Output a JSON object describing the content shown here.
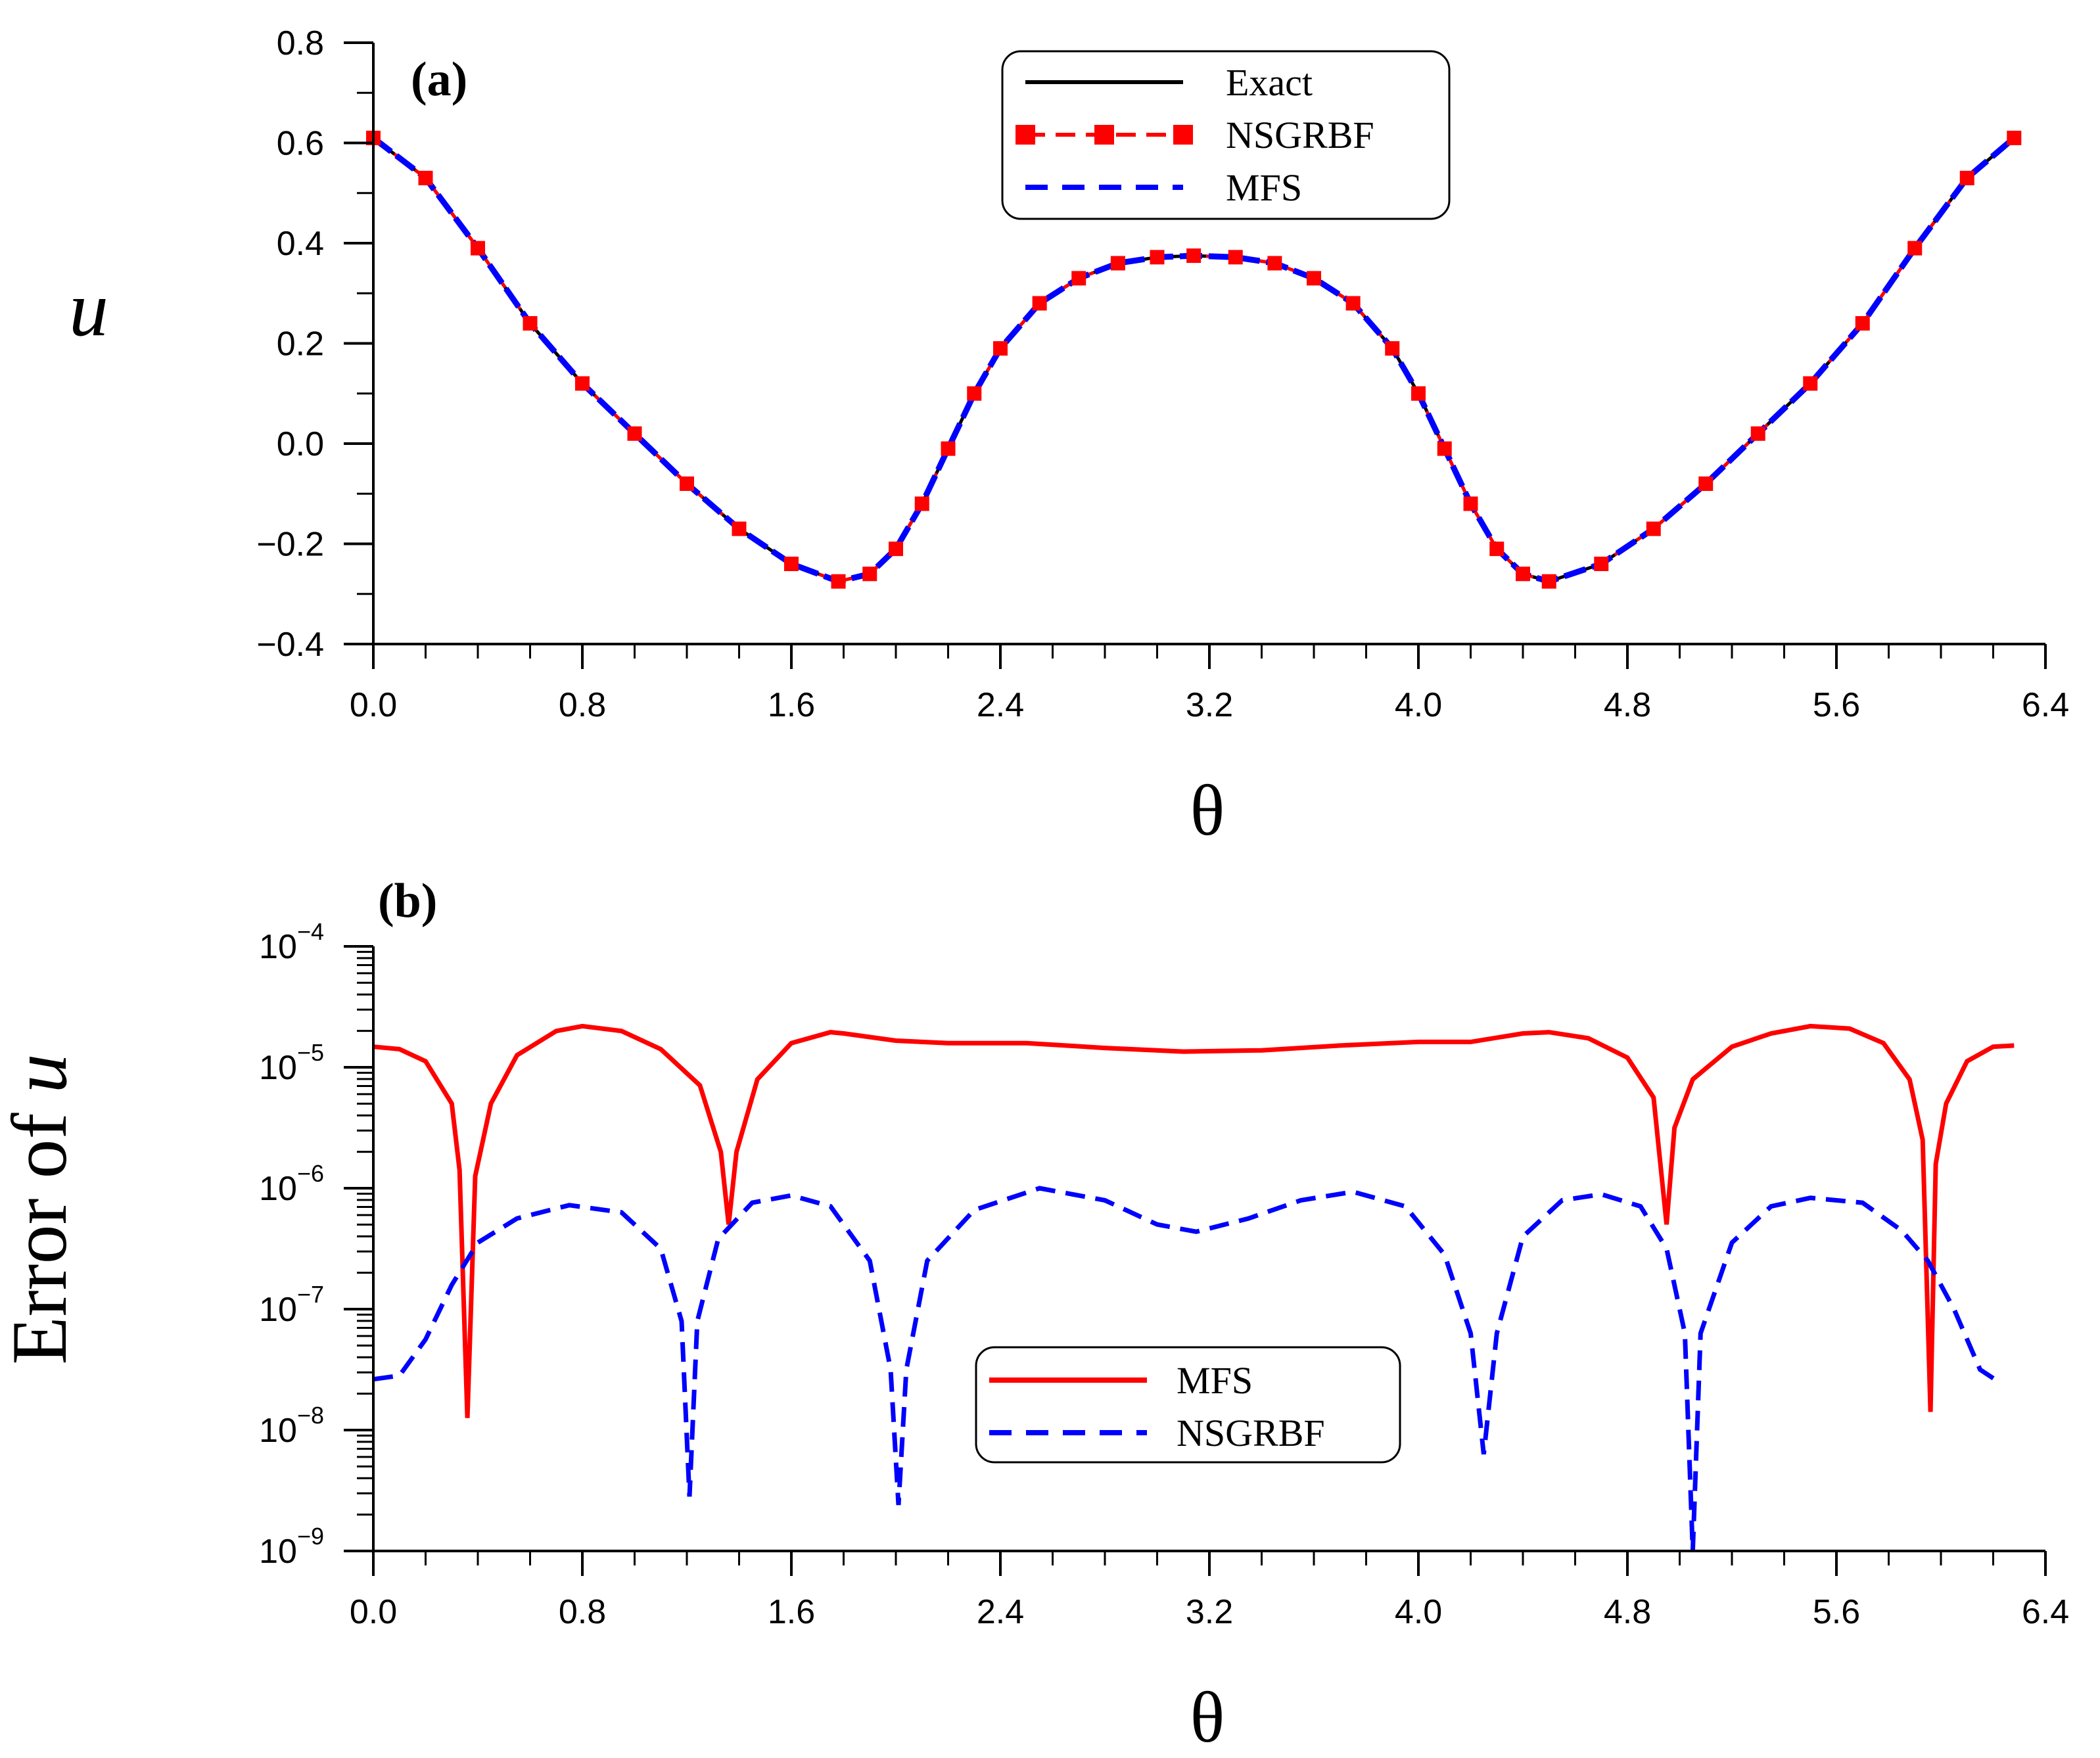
{
  "chart_data": [
    {
      "type": "line",
      "panel": "(a)",
      "xlabel": "θ",
      "ylabel": "u",
      "xlim": [
        0.0,
        6.4
      ],
      "ylim": [
        -0.4,
        0.8
      ],
      "x_ticks": [
        "0.0",
        "0.8",
        "1.6",
        "2.4",
        "3.2",
        "4.0",
        "4.8",
        "5.6",
        "6.4"
      ],
      "y_ticks": [
        "−0.4",
        "−0.2",
        "0.0",
        "0.2",
        "0.4",
        "0.6",
        "0.8"
      ],
      "legend_position": "top-center",
      "x": [
        0.0,
        0.2,
        0.4,
        0.6,
        0.8,
        1.0,
        1.2,
        1.4,
        1.6,
        1.78,
        1.9,
        2.0,
        2.1,
        2.2,
        2.3,
        2.4,
        2.55,
        2.7,
        2.85,
        3.0,
        3.14,
        3.3,
        3.45,
        3.6,
        3.75,
        3.9,
        4.0,
        4.1,
        4.2,
        4.3,
        4.4,
        4.5,
        4.7,
        4.9,
        5.1,
        5.3,
        5.5,
        5.7,
        5.9,
        6.1,
        6.28
      ],
      "series": [
        {
          "name": "Exact",
          "style": "solid",
          "color": "#000000",
          "values": [
            0.61,
            0.53,
            0.39,
            0.24,
            0.12,
            0.02,
            -0.08,
            -0.17,
            -0.24,
            -0.275,
            -0.26,
            -0.21,
            -0.12,
            -0.01,
            0.1,
            0.19,
            0.28,
            0.33,
            0.36,
            0.372,
            0.375,
            0.372,
            0.36,
            0.33,
            0.28,
            0.19,
            0.1,
            -0.01,
            -0.12,
            -0.21,
            -0.26,
            -0.275,
            -0.24,
            -0.17,
            -0.08,
            0.02,
            0.12,
            0.24,
            0.39,
            0.53,
            0.61
          ]
        },
        {
          "name": "NSGRBF",
          "style": "dashed-square-markers",
          "color": "#ff0000",
          "values": [
            0.61,
            0.53,
            0.39,
            0.24,
            0.12,
            0.02,
            -0.08,
            -0.17,
            -0.24,
            -0.275,
            -0.26,
            -0.21,
            -0.12,
            -0.01,
            0.1,
            0.19,
            0.28,
            0.33,
            0.36,
            0.372,
            0.375,
            0.372,
            0.36,
            0.33,
            0.28,
            0.19,
            0.1,
            -0.01,
            -0.12,
            -0.21,
            -0.26,
            -0.275,
            -0.24,
            -0.17,
            -0.08,
            0.02,
            0.12,
            0.24,
            0.39,
            0.53,
            0.61
          ]
        },
        {
          "name": "MFS",
          "style": "dashed",
          "color": "#0000ff",
          "values": [
            0.61,
            0.53,
            0.39,
            0.24,
            0.12,
            0.02,
            -0.08,
            -0.17,
            -0.24,
            -0.275,
            -0.26,
            -0.21,
            -0.12,
            -0.01,
            0.1,
            0.19,
            0.28,
            0.33,
            0.36,
            0.372,
            0.375,
            0.372,
            0.36,
            0.33,
            0.28,
            0.19,
            0.1,
            -0.01,
            -0.12,
            -0.21,
            -0.26,
            -0.275,
            -0.24,
            -0.17,
            -0.08,
            0.02,
            0.12,
            0.24,
            0.39,
            0.53,
            0.61
          ]
        }
      ]
    },
    {
      "type": "line",
      "panel": "(b)",
      "xlabel": "θ",
      "ylabel": "Error of u",
      "xlim": [
        0.0,
        6.4
      ],
      "ylim_log10": [
        -9,
        -4
      ],
      "yscale": "log",
      "x_ticks": [
        "0.0",
        "0.8",
        "1.6",
        "2.4",
        "3.2",
        "4.0",
        "4.8",
        "5.6",
        "6.4"
      ],
      "y_ticks": [
        {
          "base": "10",
          "exp": "−4"
        },
        {
          "base": "10",
          "exp": "−5"
        },
        {
          "base": "10",
          "exp": "−6"
        },
        {
          "base": "10",
          "exp": "−7"
        },
        {
          "base": "10",
          "exp": "−8"
        },
        {
          "base": "10",
          "exp": "−9"
        }
      ],
      "legend_position": "bottom-center",
      "series": [
        {
          "name": "MFS",
          "style": "solid",
          "color": "#ff0000",
          "x": [
            0.0,
            0.1,
            0.2,
            0.3,
            0.33,
            0.36,
            0.39,
            0.45,
            0.55,
            0.7,
            0.8,
            0.95,
            1.1,
            1.25,
            1.33,
            1.36,
            1.39,
            1.47,
            1.6,
            1.75,
            1.8,
            2.0,
            2.2,
            2.5,
            2.8,
            3.1,
            3.4,
            3.7,
            4.0,
            4.2,
            4.4,
            4.5,
            4.65,
            4.8,
            4.9,
            4.95,
            4.98,
            5.05,
            5.2,
            5.35,
            5.5,
            5.65,
            5.78,
            5.88,
            5.93,
            5.96,
            5.98,
            6.02,
            6.1,
            6.2,
            6.28
          ],
          "log10": [
            -4.83,
            -4.85,
            -4.95,
            -5.3,
            -5.85,
            -7.9,
            -5.9,
            -5.3,
            -4.9,
            -4.7,
            -4.66,
            -4.7,
            -4.85,
            -5.15,
            -5.7,
            -6.3,
            -5.7,
            -5.1,
            -4.8,
            -4.71,
            -4.72,
            -4.78,
            -4.8,
            -4.8,
            -4.84,
            -4.87,
            -4.86,
            -4.82,
            -4.79,
            -4.79,
            -4.72,
            -4.71,
            -4.76,
            -4.92,
            -5.25,
            -6.3,
            -5.5,
            -5.1,
            -4.83,
            -4.72,
            -4.66,
            -4.68,
            -4.8,
            -5.1,
            -5.6,
            -7.85,
            -5.8,
            -5.3,
            -4.95,
            -4.83,
            -4.82
          ]
        },
        {
          "name": "NSGRBF",
          "style": "dashed",
          "color": "#0000ff",
          "x": [
            0.0,
            0.1,
            0.2,
            0.3,
            0.4,
            0.55,
            0.75,
            0.95,
            1.1,
            1.18,
            1.21,
            1.24,
            1.32,
            1.45,
            1.6,
            1.75,
            1.9,
            1.98,
            2.01,
            2.04,
            2.12,
            2.3,
            2.55,
            2.8,
            3.0,
            3.15,
            3.35,
            3.55,
            3.75,
            3.95,
            4.1,
            4.2,
            4.25,
            4.3,
            4.4,
            4.55,
            4.7,
            4.85,
            4.95,
            5.02,
            5.05,
            5.08,
            5.2,
            5.35,
            5.5,
            5.7,
            5.85,
            5.95,
            6.05,
            6.15,
            6.22
          ],
          "log10": [
            -7.58,
            -7.55,
            -7.25,
            -6.8,
            -6.45,
            -6.25,
            -6.14,
            -6.2,
            -6.5,
            -7.1,
            -8.55,
            -7.1,
            -6.42,
            -6.12,
            -6.06,
            -6.15,
            -6.6,
            -7.5,
            -8.62,
            -7.5,
            -6.6,
            -6.18,
            -6.0,
            -6.1,
            -6.3,
            -6.36,
            -6.25,
            -6.1,
            -6.03,
            -6.15,
            -6.55,
            -7.2,
            -8.2,
            -7.2,
            -6.4,
            -6.1,
            -6.05,
            -6.15,
            -6.5,
            -7.2,
            -9.0,
            -7.2,
            -6.45,
            -6.15,
            -6.08,
            -6.12,
            -6.35,
            -6.6,
            -7.0,
            -7.5,
            -7.6
          ]
        }
      ]
    }
  ]
}
